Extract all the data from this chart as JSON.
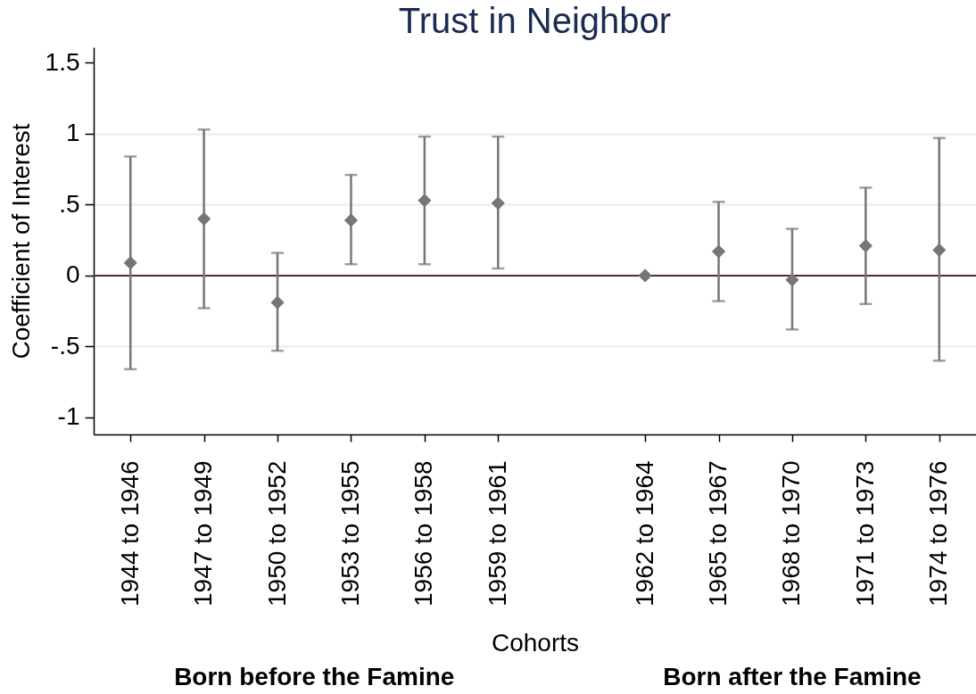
{
  "chart_data": {
    "type": "scatter",
    "title": "Trust in Neighbor",
    "xlabel": "Cohorts",
    "ylabel": "Coefficient of Interest",
    "categories": [
      "1944 to 1946",
      "1947 to 1949",
      "1950 to 1952",
      "1953 to 1955",
      "1956 to 1958",
      "1959 to 1961",
      null,
      "1962 to 1964",
      "1965 to 1967",
      "1968 to 1970",
      "1971 to 1973",
      "1974 to 1976"
    ],
    "values": [
      0.09,
      0.4,
      -0.19,
      0.39,
      0.53,
      0.51,
      null,
      0,
      0.17,
      -0.03,
      0.21,
      0.18
    ],
    "errors": [
      [
        -0.66,
        0.84
      ],
      [
        -0.23,
        1.03
      ],
      [
        -0.53,
        0.16
      ],
      [
        0.08,
        0.71
      ],
      [
        0.08,
        0.98
      ],
      [
        0.05,
        0.98
      ],
      null,
      null,
      [
        -0.18,
        0.52
      ],
      [
        -0.38,
        0.33
      ],
      [
        -0.2,
        0.62
      ],
      [
        -0.6,
        0.97
      ]
    ],
    "color": "#767676",
    "marker": "diamond",
    "ylim": [
      -1.12,
      1.61
    ],
    "yticks": [
      -1,
      {
        "value": -0.5,
        "label": "-.5"
      },
      0,
      {
        "value": 0.5,
        "label": ".5"
      },
      1,
      1.5
    ],
    "grid": "y",
    "ref_lines": [
      {
        "axis": "y",
        "value": 0,
        "color": "#4f2c3a"
      }
    ],
    "annotations": [
      "Born before the Famine",
      "Born after the Famine"
    ]
  }
}
